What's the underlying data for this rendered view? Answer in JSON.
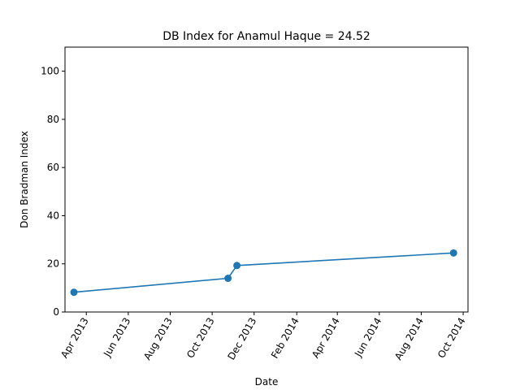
{
  "chart_data": {
    "type": "line",
    "title": "DB Index for Anamul Haque = 24.52",
    "xlabel": "Date",
    "ylabel": "Don Bradman Index",
    "x_tick_labels": [
      "Apr 2013",
      "Jun 2013",
      "Aug 2013",
      "Oct 2013",
      "Dec 2013",
      "Feb 2014",
      "Apr 2014",
      "Jun 2014",
      "Aug 2014",
      "Oct 2014"
    ],
    "x_ticks": [
      "2013-04-01",
      "2013-06-01",
      "2013-08-01",
      "2013-10-01",
      "2013-12-01",
      "2014-02-01",
      "2014-04-01",
      "2014-06-01",
      "2014-08-01",
      "2014-10-01"
    ],
    "xlim": [
      "2013-03-01",
      "2014-10-08"
    ],
    "y_ticks": [
      0,
      20,
      40,
      60,
      80,
      100
    ],
    "ylim": [
      0,
      110
    ],
    "grid": false,
    "series": [
      {
        "color": "#1f77b4",
        "marker": "circle",
        "points": [
          {
            "x": "2013-03-14",
            "y": 8.2
          },
          {
            "x": "2013-10-24",
            "y": 14.0
          },
          {
            "x": "2013-11-06",
            "y": 19.3
          },
          {
            "x": "2014-09-17",
            "y": 24.52
          }
        ]
      }
    ]
  }
}
